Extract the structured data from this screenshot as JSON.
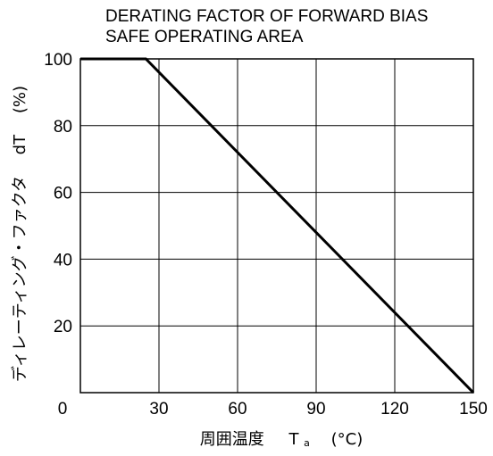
{
  "chart_data": {
    "type": "line",
    "title_lines": [
      "DERATING FACTOR OF FORWARD BIAS",
      "SAFE OPERATING AREA"
    ],
    "xlabel": {
      "main": "周囲温度",
      "symbol": "T",
      "subscript": "a",
      "unit": "(°C)"
    },
    "ylabel": {
      "main": "ディレーティング・ファクタ",
      "symbol": "dT",
      "unit": "(%)"
    },
    "xlim": [
      0,
      150
    ],
    "ylim": [
      0,
      100
    ],
    "xticks": [
      0,
      30,
      60,
      90,
      120,
      150
    ],
    "yticks": [
      20,
      40,
      60,
      80,
      100
    ],
    "grid": true,
    "series": [
      {
        "x": [
          0,
          25,
          150
        ],
        "y": [
          100,
          100,
          0
        ]
      }
    ]
  }
}
